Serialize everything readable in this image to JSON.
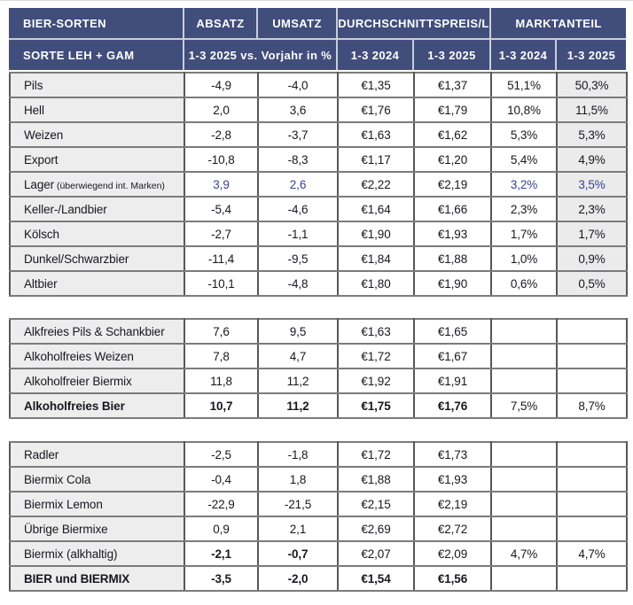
{
  "table": {
    "colors": {
      "header_bg": "#414d7b",
      "header_text": "#ffffff",
      "label_col_bg": "#ededed",
      "highlight_col_bg": "#ebebeb",
      "blue_text": "#3a418f",
      "border_dark": "#4a4a4a",
      "border_mid": "#7b7b7b"
    },
    "header": {
      "title": "BIER-SORTEN",
      "subtitle": "SORTE LEH + GAM",
      "absatz": "ABSATZ",
      "umsatz": "UMSATZ",
      "preis": "DURCHSCHNITTSPREIS/L",
      "marktanteil": "MARKTANTEIL",
      "vs_vorjahr": "1-3 2025 vs. Vorjahr in %",
      "preis_2024": "1-3 2024",
      "preis_2025": "1-3 2025",
      "ma_2024": "1-3 2024",
      "ma_2025": "1-3 2025"
    },
    "sections": [
      {
        "gray_last_col": true,
        "rows": [
          {
            "label": "Pils",
            "cells": [
              "-4,9",
              "-4,0",
              "€1,35",
              "€1,37",
              "51,1%",
              "50,3%"
            ]
          },
          {
            "label": "Hell",
            "cells": [
              "2,0",
              "3,6",
              "€1,76",
              "€1,79",
              "10,8%",
              "11,5%"
            ]
          },
          {
            "label": "Weizen",
            "cells": [
              "-2,8",
              "-3,7",
              "€1,63",
              "€1,62",
              "5,3%",
              "5,3%"
            ]
          },
          {
            "label": "Export",
            "cells": [
              "-10,8",
              "-8,3",
              "€1,17",
              "€1,20",
              "5,4%",
              "4,9%"
            ]
          },
          {
            "label": "Lager",
            "label_small": "(überwiegend int. Marken)",
            "blue_cells": [
              0,
              1,
              4,
              5
            ],
            "cells": [
              "3,9",
              "2,6",
              "€2,22",
              "€2,19",
              "3,2%",
              "3,5%"
            ]
          },
          {
            "label": "Keller-/Landbier",
            "cells": [
              "-5,4",
              "-4,6",
              "€1,64",
              "€1,66",
              "2,3%",
              "2,3%"
            ]
          },
          {
            "label": "Kölsch",
            "cells": [
              "-2,7",
              "-1,1",
              "€1,90",
              "€1,93",
              "1,7%",
              "1,7%"
            ]
          },
          {
            "label": "Dunkel/Schwarzbier",
            "cells": [
              "-11,4",
              "-9,5",
              "€1,84",
              "€1,88",
              "1,0%",
              "0,9%"
            ]
          },
          {
            "label": "Altbier",
            "cells": [
              "-10,1",
              "-4,8",
              "€1,80",
              "€1,90",
              "0,6%",
              "0,5%"
            ]
          }
        ]
      },
      {
        "gray_last_col": false,
        "rows": [
          {
            "label": "Alkfreies Pils & Schankbier",
            "cells": [
              "7,6",
              "9,5",
              "€1,63",
              "€1,65",
              "",
              ""
            ]
          },
          {
            "label": "Alkoholfreies Weizen",
            "cells": [
              "7,8",
              "4,7",
              "€1,72",
              "€1,67",
              "",
              ""
            ]
          },
          {
            "label": "Alkoholfreier Biermix",
            "cells": [
              "11,8",
              "11,2",
              "€1,92",
              "€1,91",
              "",
              ""
            ]
          },
          {
            "label": "Alkoholfreies Bier",
            "bold_label": true,
            "bold_cells": [
              0,
              1,
              2,
              3
            ],
            "cells": [
              "10,7",
              "11,2",
              "€1,75",
              "€1,76",
              "7,5%",
              "8,7%"
            ]
          }
        ]
      },
      {
        "gray_last_col": false,
        "rows": [
          {
            "label": "Radler",
            "cells": [
              "-2,5",
              "-1,8",
              "€1,72",
              "€1,73",
              "",
              ""
            ]
          },
          {
            "label": "Biermix Cola",
            "cells": [
              "-0,4",
              "1,8",
              "€1,88",
              "€1,93",
              "",
              ""
            ]
          },
          {
            "label": "Biermix Lemon",
            "cells": [
              "-22,9",
              "-21,5",
              "€2,15",
              "€2,19",
              "",
              ""
            ]
          },
          {
            "label": "Übrige Biermixe",
            "cells": [
              "0,9",
              "2,1",
              "€2,69",
              "€2,72",
              "",
              ""
            ]
          },
          {
            "label": "Biermix (alkhaltig)",
            "bold_cells": [
              0,
              1
            ],
            "cells": [
              "-2,1",
              "-0,7",
              "€2,07",
              "€2,09",
              "4,7%",
              "4,7%"
            ]
          },
          {
            "label": "BIER und BIERMIX",
            "bold_label": true,
            "bold_cells": [
              0,
              1,
              2,
              3
            ],
            "cells": [
              "-3,5",
              "-2,0",
              "€1,54",
              "€1,56",
              "",
              ""
            ]
          }
        ]
      }
    ]
  },
  "chart_data": {
    "type": "table",
    "title": "BIER-SORTEN — SORTE LEH + GAM",
    "columns": [
      "Sorte LEH + GAM",
      "Absatz 1-3 2025 vs. Vorjahr in %",
      "Umsatz 1-3 2025 vs. Vorjahr in %",
      "Durchschnittspreis/L 1-3 2024",
      "Durchschnittspreis/L 1-3 2025",
      "Marktanteil 1-3 2024",
      "Marktanteil 1-3 2025"
    ],
    "rows": [
      [
        "Pils",
        -4.9,
        -4.0,
        "€1,35",
        "€1,37",
        "51,1%",
        "50,3%"
      ],
      [
        "Hell",
        2.0,
        3.6,
        "€1,76",
        "€1,79",
        "10,8%",
        "11,5%"
      ],
      [
        "Weizen",
        -2.8,
        -3.7,
        "€1,63",
        "€1,62",
        "5,3%",
        "5,3%"
      ],
      [
        "Export",
        -10.8,
        -8.3,
        "€1,17",
        "€1,20",
        "5,4%",
        "4,9%"
      ],
      [
        "Lager (überwiegend int. Marken)",
        3.9,
        2.6,
        "€2,22",
        "€2,19",
        "3,2%",
        "3,5%"
      ],
      [
        "Keller-/Landbier",
        -5.4,
        -4.6,
        "€1,64",
        "€1,66",
        "2,3%",
        "2,3%"
      ],
      [
        "Kölsch",
        -2.7,
        -1.1,
        "€1,90",
        "€1,93",
        "1,7%",
        "1,7%"
      ],
      [
        "Dunkel/Schwarzbier",
        -11.4,
        -9.5,
        "€1,84",
        "€1,88",
        "1,0%",
        "0,9%"
      ],
      [
        "Altbier",
        -10.1,
        -4.8,
        "€1,80",
        "€1,90",
        "0,6%",
        "0,5%"
      ],
      [
        "Alkfreies Pils & Schankbier",
        7.6,
        9.5,
        "€1,63",
        "€1,65",
        "",
        ""
      ],
      [
        "Alkoholfreies Weizen",
        7.8,
        4.7,
        "€1,72",
        "€1,67",
        "",
        ""
      ],
      [
        "Alkoholfreier Biermix",
        11.8,
        11.2,
        "€1,92",
        "€1,91",
        "",
        ""
      ],
      [
        "Alkoholfreies Bier",
        10.7,
        11.2,
        "€1,75",
        "€1,76",
        "7,5%",
        "8,7%"
      ],
      [
        "Radler",
        -2.5,
        -1.8,
        "€1,72",
        "€1,73",
        "",
        ""
      ],
      [
        "Biermix Cola",
        -0.4,
        1.8,
        "€1,88",
        "€1,93",
        "",
        ""
      ],
      [
        "Biermix Lemon",
        -22.9,
        -21.5,
        "€2,15",
        "€2,19",
        "",
        ""
      ],
      [
        "Übrige Biermixe",
        0.9,
        2.1,
        "€2,69",
        "€2,72",
        "",
        ""
      ],
      [
        "Biermix (alkhaltig)",
        -2.1,
        -0.7,
        "€2,07",
        "€2,09",
        "4,7%",
        "4,7%"
      ],
      [
        "BIER und BIERMIX",
        -3.5,
        -2.0,
        "€1,54",
        "€1,56",
        "",
        ""
      ]
    ]
  }
}
